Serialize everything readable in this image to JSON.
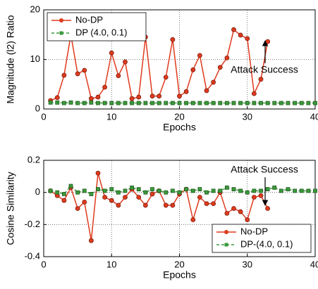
{
  "chart_data": [
    {
      "type": "line",
      "xlabel": "Epochs",
      "ylabel": "Magnitude (l2) Ratio",
      "xlim": [
        0,
        40
      ],
      "xticks": [
        0,
        10,
        20,
        30,
        40
      ],
      "ylim": [
        0,
        20
      ],
      "yticks": [
        0,
        10,
        20
      ],
      "grid": true,
      "legend": "upper left",
      "annotation": "Attack Success",
      "series": [
        {
          "name": "No-DP",
          "color": "#e03a1e",
          "x": [
            1,
            2,
            3,
            4,
            5,
            6,
            7,
            8,
            9,
            10,
            11,
            12,
            13,
            14,
            15,
            16,
            17,
            18,
            19,
            20,
            21,
            22,
            23,
            24,
            25,
            26,
            27,
            28,
            29,
            30,
            31,
            32,
            33
          ],
          "values": [
            1.7,
            2.3,
            6.8,
            15.0,
            7.1,
            7.8,
            2.1,
            2.4,
            4.4,
            11.3,
            6.7,
            9.5,
            2.1,
            2.4,
            14.5,
            2.6,
            2.6,
            6.4,
            14.0,
            2.6,
            3.5,
            7.9,
            10.8,
            3.7,
            5.4,
            8.4,
            10.3,
            16.0,
            14.9,
            14.2,
            3.1,
            6.0,
            13.6
          ]
        },
        {
          "name": "DP (4.0, 0.1)",
          "color": "#3a9a3a",
          "x": [
            1,
            2,
            3,
            4,
            5,
            6,
            7,
            8,
            9,
            10,
            11,
            12,
            13,
            14,
            15,
            16,
            17,
            18,
            19,
            20,
            21,
            22,
            23,
            24,
            25,
            26,
            27,
            28,
            29,
            30,
            31,
            32,
            33,
            34,
            35,
            36,
            37,
            38,
            39,
            40
          ],
          "values": [
            1.3,
            1.3,
            1.2,
            1.3,
            1.2,
            1.2,
            1.3,
            1.2,
            1.2,
            1.2,
            1.2,
            1.2,
            1.2,
            1.2,
            1.2,
            1.2,
            1.2,
            1.2,
            1.2,
            1.2,
            1.2,
            1.2,
            1.2,
            1.2,
            1.2,
            1.2,
            1.2,
            1.2,
            1.2,
            1.2,
            1.2,
            1.2,
            1.2,
            1.2,
            1.2,
            1.2,
            1.2,
            1.2,
            1.2,
            1.2
          ]
        }
      ]
    },
    {
      "type": "line",
      "xlabel": "Epochs",
      "ylabel": "Cosine Similarity",
      "xlim": [
        0,
        40
      ],
      "xticks": [
        0,
        10,
        20,
        30,
        40
      ],
      "ylim": [
        -0.4,
        0.2
      ],
      "yticks": [
        -0.4,
        -0.2,
        0,
        0.2
      ],
      "grid": true,
      "legend": "lower right",
      "annotation": "Attack Success",
      "series": [
        {
          "name": "No-DP",
          "color": "#e03a1e",
          "x": [
            1,
            2,
            3,
            4,
            5,
            6,
            7,
            8,
            9,
            10,
            11,
            12,
            13,
            14,
            15,
            16,
            17,
            18,
            19,
            20,
            21,
            22,
            23,
            24,
            25,
            26,
            27,
            28,
            29,
            30,
            31,
            32,
            33
          ],
          "values": [
            0.01,
            -0.02,
            -0.05,
            0.03,
            -0.1,
            -0.06,
            -0.3,
            0.12,
            -0.03,
            -0.05,
            -0.08,
            -0.03,
            0.02,
            -0.03,
            -0.08,
            -0.01,
            0.01,
            -0.08,
            -0.08,
            -0.01,
            0.02,
            -0.17,
            -0.03,
            -0.07,
            -0.07,
            0,
            -0.13,
            -0.1,
            -0.12,
            -0.17,
            -0.03,
            -0.02,
            -0.1
          ]
        },
        {
          "name": "DP-(4.0, 0.1)",
          "color": "#3a9a3a",
          "x": [
            1,
            2,
            3,
            4,
            5,
            6,
            7,
            8,
            9,
            10,
            11,
            12,
            13,
            14,
            15,
            16,
            17,
            18,
            19,
            20,
            21,
            22,
            23,
            24,
            25,
            26,
            27,
            28,
            29,
            30,
            31,
            32,
            33,
            34,
            35,
            36,
            37,
            38,
            39,
            40
          ],
          "values": [
            0.01,
            0,
            -0.01,
            0.04,
            0,
            0.01,
            -0.01,
            0.02,
            0.01,
            0.02,
            0,
            0.01,
            0.03,
            0.02,
            0,
            0.02,
            0.01,
            0,
            0.01,
            0,
            0.02,
            0.01,
            0.02,
            0,
            0.01,
            0.01,
            0.03,
            0.02,
            0.01,
            0,
            0.01,
            0.01,
            0.02,
            0.03,
            0.01,
            0.02,
            0.01,
            0.01,
            0.01,
            0.01
          ]
        }
      ]
    }
  ]
}
